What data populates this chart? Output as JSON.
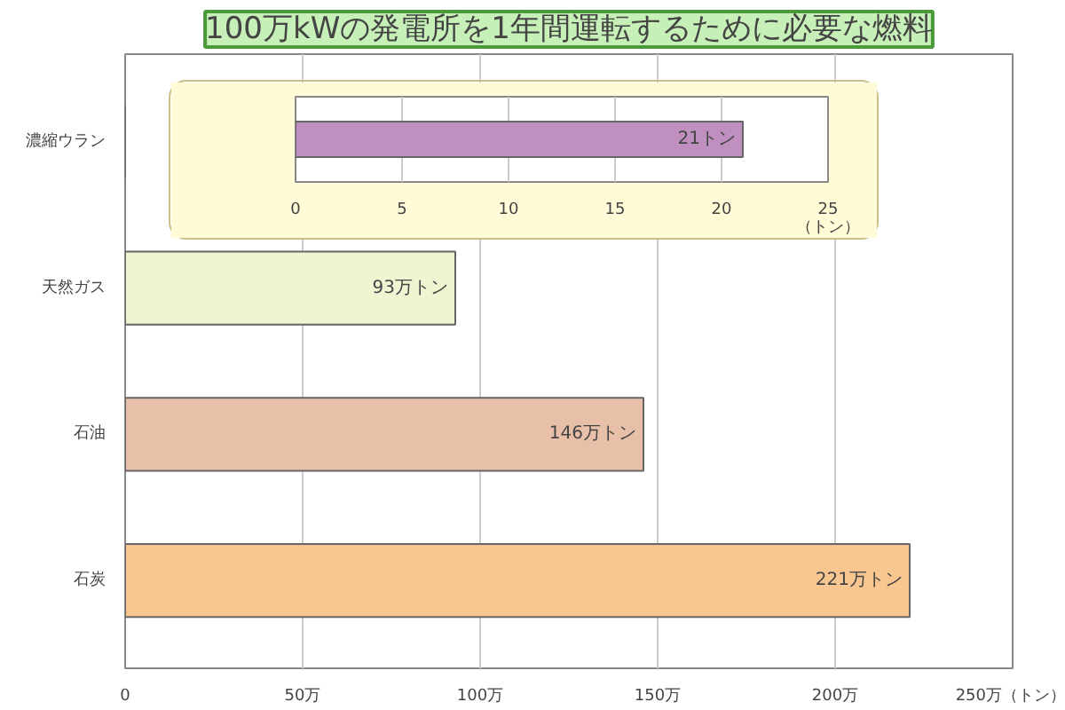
{
  "chart_data": [
    {
      "type": "bar",
      "orientation": "horizontal",
      "title": "100万kWの発電所を1年間運転するために必要な燃料",
      "categories": [
        "濃縮ウラン",
        "天然ガス",
        "石油",
        "石炭"
      ],
      "values": [
        null,
        93,
        146,
        221
      ],
      "colors": [
        "#bf8fc0",
        "#eef5d0",
        "#e8bfa8",
        "#f8c690"
      ],
      "value_labels": [
        null,
        "93万トン",
        "146万トン",
        "221万トン"
      ],
      "xlim": [
        0,
        250
      ],
      "xticks": [
        0,
        {
          "value": 50,
          "label": "50万"
        },
        {
          "value": 100,
          "label": "100万"
        },
        {
          "value": 150,
          "label": "150万"
        },
        {
          "value": 200,
          "label": "200万"
        },
        {
          "value": 250,
          "label": "250万（トン）"
        }
      ],
      "grid": "x"
    },
    {
      "type": "bar",
      "orientation": "horizontal",
      "categories": [
        null
      ],
      "values": [
        21
      ],
      "colors": [
        "#bf8fc0"
      ],
      "value_labels": [
        "21トン"
      ],
      "xlabel": "（トン）",
      "xlim": [
        0,
        25
      ],
      "xticks": [
        0,
        5,
        10,
        15,
        20,
        25
      ],
      "grid": "x"
    }
  ]
}
